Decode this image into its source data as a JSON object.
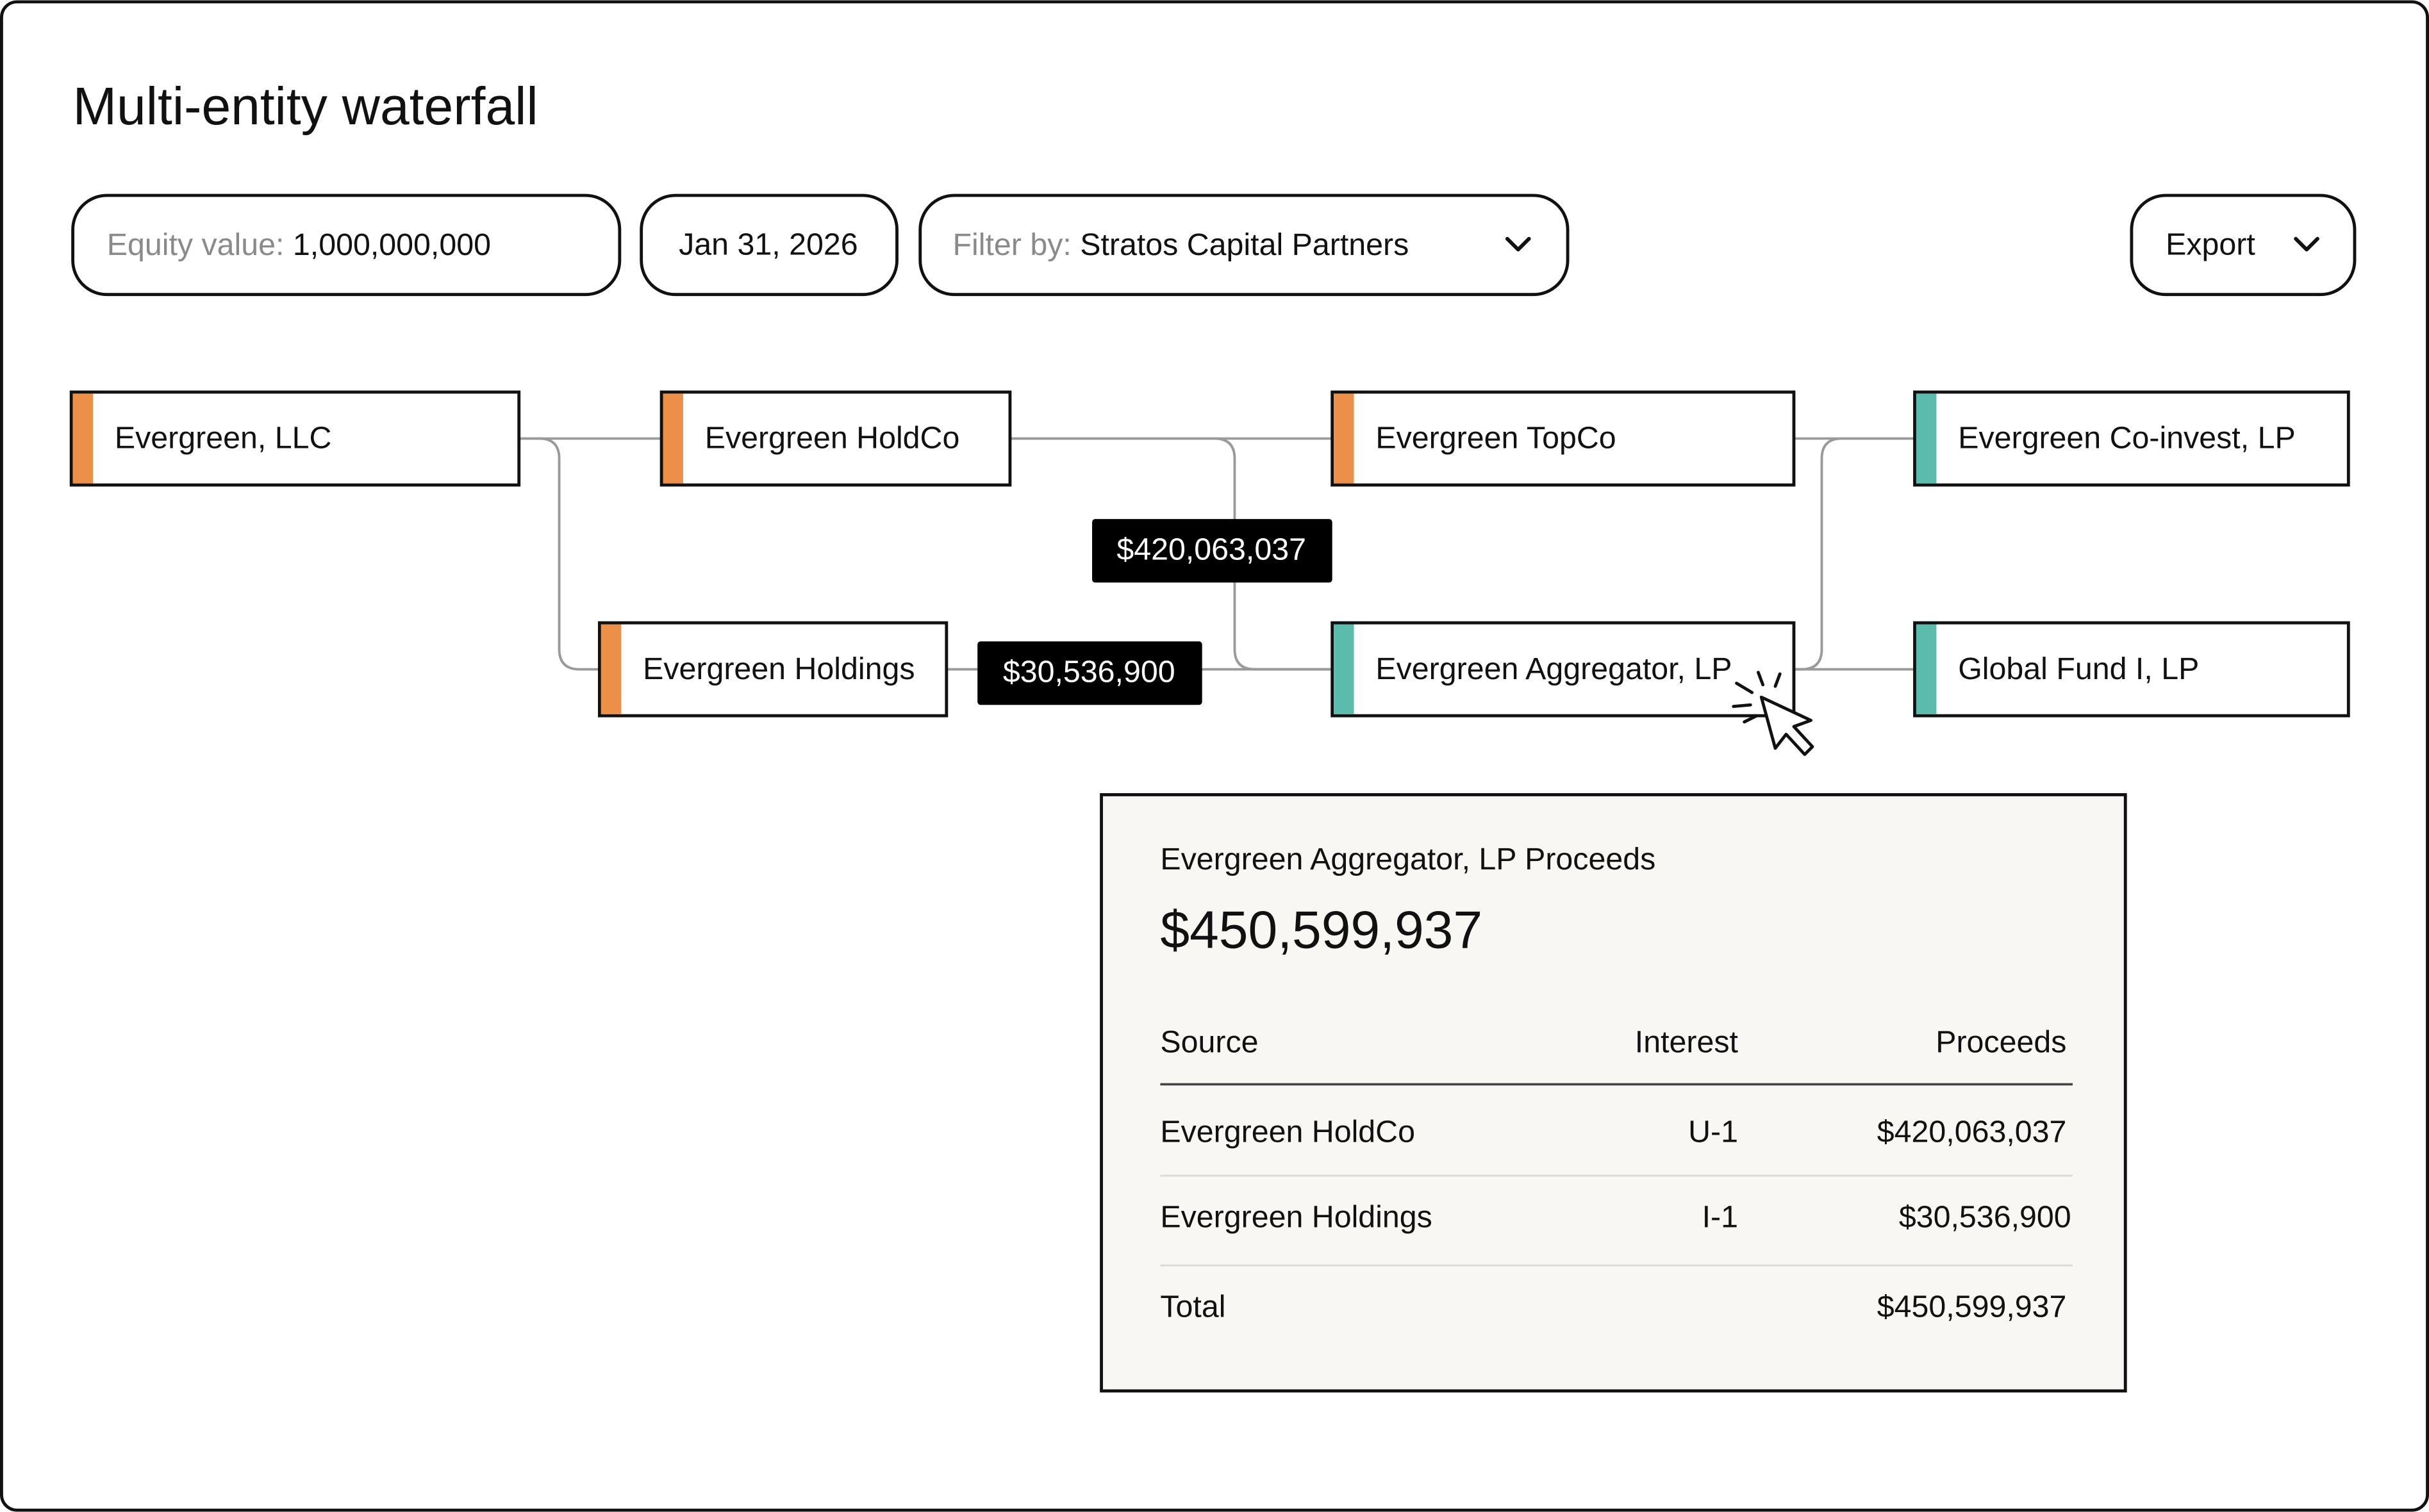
{
  "header": {
    "title": "Multi-entity waterfall"
  },
  "controls": {
    "equity_label": "Equity value:",
    "equity_value": "1,000,000,000",
    "date": "Jan 31, 2026",
    "filter_label": "Filter by:",
    "filter_value": "Stratos Capital Partners",
    "export": "Export"
  },
  "nodes": [
    {
      "label": "Evergreen, LLC"
    },
    {
      "label": "Evergreen HoldCo"
    },
    {
      "label": "Evergreen TopCo"
    },
    {
      "label": "Evergreen Co-invest, LP"
    },
    {
      "label": "Evergreen Holdings"
    },
    {
      "label": "Evergreen Aggregator, LP"
    },
    {
      "label": "Global Fund I, LP"
    }
  ],
  "edge_labels": [
    "$420,063,037",
    "$30,536,900"
  ],
  "tooltip": {
    "title": "Evergreen Aggregator, LP Proceeds",
    "total": "$450,599,937",
    "columns": [
      "Source",
      "Interest",
      "Proceeds"
    ],
    "rows": [
      {
        "source": "Evergreen HoldCo",
        "interest": "U-1",
        "proceeds": "$420,063,037"
      },
      {
        "source": "Evergreen Holdings",
        "interest": "I-1",
        "proceeds": "$30,536,900"
      },
      {
        "source": "Total",
        "proceeds": "$450,599,937"
      }
    ]
  }
}
